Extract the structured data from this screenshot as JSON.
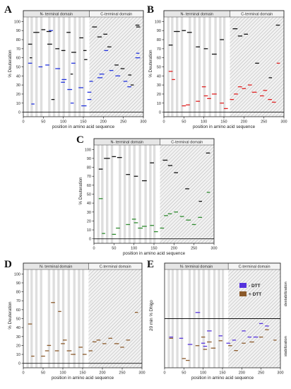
{
  "figure": {
    "panels": [
      "A",
      "B",
      "C",
      "D",
      "E"
    ],
    "n_domain_label": "N- terminal domain",
    "c_domain_label": "C-terminal domain",
    "legend": {
      "minus_dtt": "- DTT",
      "plus_dtt": "+ DTT"
    },
    "colors": {
      "black": "#111111",
      "blue": "#2233dd",
      "red": "#e02020",
      "green": "#2e8b2e",
      "brown": "#8b5a2b",
      "purple": "#5533dd"
    }
  },
  "chart_data": [
    {
      "panel": "A",
      "type": "scatter",
      "xlabel": "position in amino acid sequence",
      "ylabel": "% Deuteration",
      "xlim": [
        0,
        300
      ],
      "ylim": [
        -5,
        105
      ],
      "xticks": [
        "0",
        "50",
        "100",
        "150",
        "200",
        "250",
        "300"
      ],
      "yticks": [
        "0",
        "10",
        "20",
        "30",
        "40",
        "50",
        "60",
        "70",
        "80",
        "90",
        "100"
      ],
      "series": [
        {
          "color": "black",
          "segments": [
            [
              12,
              22,
              75
            ],
            [
              25,
              40,
              88
            ],
            [
              45,
              55,
              91
            ],
            [
              58,
              70,
              89
            ],
            [
              60,
              72,
              75
            ],
            [
              80,
              90,
              70
            ],
            [
              95,
              105,
              68
            ],
            [
              108,
              118,
              88
            ],
            [
              120,
              132,
              66
            ],
            [
              140,
              150,
              82
            ],
            [
              152,
              160,
              58
            ],
            [
              172,
              184,
              94
            ],
            [
              185,
              196,
              83
            ],
            [
              200,
              210,
              86
            ],
            [
              210,
              220,
              72
            ],
            [
              228,
              238,
              52
            ],
            [
              243,
              253,
              48
            ],
            [
              262,
              270,
              41
            ],
            [
              280,
              290,
              96
            ],
            [
              282,
              292,
              94
            ],
            [
              16,
              22,
              60
            ],
            [
              70,
              78,
              14
            ],
            [
              118,
              124,
              42
            ],
            [
              150,
              158,
              68
            ],
            [
              268,
              276,
              30
            ]
          ]
        },
        {
          "color": "blue",
          "segments": [
            [
              12,
              22,
              54
            ],
            [
              20,
              28,
              9
            ],
            [
              38,
              48,
              50
            ],
            [
              55,
              65,
              52
            ],
            [
              80,
              92,
              48
            ],
            [
              94,
              104,
              33
            ],
            [
              96,
              108,
              36
            ],
            [
              110,
              122,
              25
            ],
            [
              138,
              150,
              27
            ],
            [
              145,
              158,
              7
            ],
            [
              160,
              170,
              14
            ],
            [
              160,
              170,
              22
            ],
            [
              165,
              174,
              34
            ],
            [
              185,
              198,
              38
            ],
            [
              190,
              202,
              42
            ],
            [
              202,
              212,
              68
            ],
            [
              215,
              225,
              46
            ],
            [
              230,
              242,
              40
            ],
            [
              250,
              260,
              34
            ],
            [
              260,
              270,
              28
            ],
            [
              280,
              292,
              60
            ],
            [
              282,
              290,
              65
            ],
            [
              64,
              74,
              90
            ],
            [
              120,
              130,
              54
            ],
            [
              118,
              126,
              10
            ]
          ]
        }
      ]
    },
    {
      "panel": "B",
      "type": "scatter",
      "xlabel": "position in amino acid sequence",
      "ylabel": "% Deuteration",
      "xlim": [
        0,
        300
      ],
      "ylim": [
        -5,
        105
      ],
      "xticks": [
        "0",
        "50",
        "100",
        "150",
        "200",
        "250",
        "300"
      ],
      "yticks": [
        "0",
        "10",
        "20",
        "30",
        "40",
        "50",
        "60",
        "70",
        "80",
        "90",
        "100"
      ],
      "series": [
        {
          "color": "black",
          "segments": [
            [
              12,
              22,
              74
            ],
            [
              25,
              40,
              89
            ],
            [
              45,
              55,
              90
            ],
            [
              58,
              70,
              88
            ],
            [
              80,
              90,
              72
            ],
            [
              100,
              110,
              70
            ],
            [
              120,
              132,
              64
            ],
            [
              140,
              150,
              80
            ],
            [
              172,
              184,
              92
            ],
            [
              185,
              196,
              84
            ],
            [
              200,
              210,
              86
            ],
            [
              228,
              238,
              54
            ],
            [
              262,
              270,
              38
            ],
            [
              280,
              290,
              96
            ]
          ]
        },
        {
          "color": "red",
          "segments": [
            [
              12,
              22,
              45
            ],
            [
              20,
              28,
              36
            ],
            [
              45,
              55,
              7
            ],
            [
              55,
              65,
              8
            ],
            [
              80,
              90,
              12
            ],
            [
              95,
              105,
              28
            ],
            [
              100,
              110,
              18
            ],
            [
              108,
              118,
              15
            ],
            [
              120,
              132,
              20
            ],
            [
              140,
              150,
              10
            ],
            [
              150,
              160,
              4
            ],
            [
              165,
              175,
              14
            ],
            [
              175,
              185,
              20
            ],
            [
              185,
              195,
              28
            ],
            [
              195,
              205,
              26
            ],
            [
              210,
              220,
              30
            ],
            [
              220,
              232,
              22
            ],
            [
              240,
              250,
              18
            ],
            [
              248,
              258,
              24
            ],
            [
              260,
              270,
              14
            ],
            [
              270,
              280,
              11
            ],
            [
              282,
              290,
              54
            ]
          ]
        }
      ]
    },
    {
      "panel": "C",
      "type": "scatter",
      "xlabel": "position in amino acid sequence",
      "ylabel": "% Deuteration",
      "xlim": [
        0,
        300
      ],
      "ylim": [
        -5,
        105
      ],
      "xticks": [
        "0",
        "50",
        "100",
        "150",
        "200",
        "250",
        "300"
      ],
      "yticks": [
        "0",
        "10",
        "20",
        "30",
        "40",
        "50",
        "60",
        "70",
        "80",
        "90",
        "100"
      ],
      "series": [
        {
          "color": "black",
          "segments": [
            [
              12,
              22,
              78
            ],
            [
              25,
              40,
              90
            ],
            [
              45,
              55,
              92
            ],
            [
              58,
              70,
              91
            ],
            [
              80,
              90,
              72
            ],
            [
              100,
              110,
              70
            ],
            [
              120,
              132,
              65
            ],
            [
              140,
              150,
              85
            ],
            [
              172,
              184,
              88
            ],
            [
              185,
              196,
              82
            ],
            [
              200,
              210,
              74
            ],
            [
              228,
              238,
              56
            ],
            [
              262,
              270,
              42
            ],
            [
              280,
              290,
              96
            ]
          ]
        },
        {
          "color": "green",
          "segments": [
            [
              12,
              22,
              45
            ],
            [
              20,
              28,
              6
            ],
            [
              45,
              55,
              5
            ],
            [
              55,
              65,
              12
            ],
            [
              80,
              90,
              16
            ],
            [
              95,
              105,
              22
            ],
            [
              100,
              110,
              18
            ],
            [
              110,
              122,
              12
            ],
            [
              120,
              132,
              14
            ],
            [
              140,
              150,
              15
            ],
            [
              150,
              160,
              8
            ],
            [
              165,
              175,
              12
            ],
            [
              175,
              185,
              26
            ],
            [
              185,
              195,
              28
            ],
            [
              200,
              210,
              30
            ],
            [
              215,
              225,
              25
            ],
            [
              230,
              242,
              21
            ],
            [
              245,
              255,
              16
            ],
            [
              260,
              270,
              24
            ],
            [
              282,
              290,
              52
            ]
          ]
        }
      ]
    },
    {
      "panel": "D",
      "type": "scatter",
      "xlabel": "position in amino acid sequence",
      "ylabel": "% Deuteration",
      "xlim": [
        0,
        300
      ],
      "ylim": [
        -5,
        105
      ],
      "xticks": [
        "0",
        "50",
        "100",
        "150",
        "200",
        "250",
        "300"
      ],
      "yticks": [
        "0",
        "10",
        "20",
        "30",
        "40",
        "50",
        "60",
        "70",
        "80",
        "90",
        "100"
      ],
      "series": [
        {
          "color": "brown",
          "segments": [
            [
              12,
              22,
              44
            ],
            [
              20,
              28,
              8
            ],
            [
              45,
              55,
              8
            ],
            [
              55,
              65,
              14
            ],
            [
              60,
              70,
              20
            ],
            [
              80,
              90,
              14
            ],
            [
              95,
              105,
              22
            ],
            [
              100,
              110,
              26
            ],
            [
              110,
              122,
              14
            ],
            [
              120,
              132,
              10
            ],
            [
              140,
              150,
              18
            ],
            [
              150,
              160,
              10
            ],
            [
              165,
              175,
              14
            ],
            [
              175,
              185,
              24
            ],
            [
              185,
              195,
              26
            ],
            [
              200,
              210,
              22
            ],
            [
              215,
              225,
              28
            ],
            [
              230,
              242,
              22
            ],
            [
              245,
              255,
              18
            ],
            [
              260,
              270,
              26
            ],
            [
              282,
              290,
              57
            ],
            [
              70,
              80,
              68
            ],
            [
              88,
              96,
              58
            ]
          ]
        }
      ]
    },
    {
      "panel": "E",
      "type": "scatter",
      "xlabel": "position in amino acid sequence",
      "ylabel": "20 min % Dhigo",
      "xlim": [
        0,
        300
      ],
      "ylim": [
        -80,
        80
      ],
      "xticks": [
        "0",
        "50",
        "100",
        "150",
        "200",
        "250",
        "300"
      ],
      "yticks": [],
      "annotations": {
        "top": "destabilization",
        "bottom": "stabilization"
      },
      "series": [
        {
          "name": "- DTT",
          "color": "purple",
          "segments": [
            [
              12,
              22,
              -30
            ],
            [
              38,
              48,
              -32
            ],
            [
              60,
              72,
              -42
            ],
            [
              80,
              92,
              10
            ],
            [
              95,
              105,
              -40
            ],
            [
              100,
              110,
              -45
            ],
            [
              110,
              122,
              -20
            ],
            [
              140,
              150,
              -28
            ],
            [
              160,
              170,
              -40
            ],
            [
              175,
              185,
              -35
            ],
            [
              200,
              210,
              -20
            ],
            [
              215,
              225,
              -30
            ],
            [
              230,
              242,
              -30
            ],
            [
              245,
              255,
              -8
            ],
            [
              260,
              270,
              -12
            ]
          ]
        },
        {
          "name": "+ DTT",
          "color": "brown",
          "segments": [
            [
              12,
              22,
              -32
            ],
            [
              45,
              55,
              -65
            ],
            [
              55,
              65,
              -68
            ],
            [
              80,
              90,
              -44
            ],
            [
              95,
              105,
              -30
            ],
            [
              100,
              110,
              -50
            ],
            [
              110,
              122,
              -38
            ],
            [
              120,
              132,
              -48
            ],
            [
              140,
              150,
              -36
            ],
            [
              165,
              175,
              -44
            ],
            [
              180,
              190,
              -52
            ],
            [
              200,
              210,
              -40
            ],
            [
              220,
              232,
              -38
            ],
            [
              245,
              255,
              -30
            ],
            [
              260,
              270,
              -18
            ],
            [
              282,
              290,
              -35
            ]
          ]
        }
      ]
    }
  ]
}
